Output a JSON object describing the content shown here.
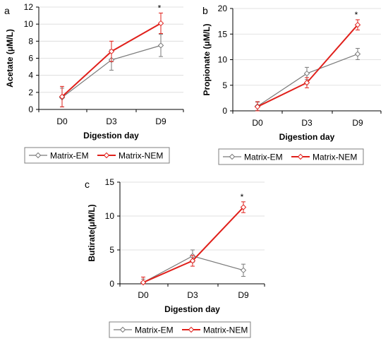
{
  "colors": {
    "em": "#7a7a7a",
    "nem": "#e0201b"
  },
  "chart_data": [
    {
      "type": "line",
      "panel_label": "a",
      "categories": [
        "D0",
        "D3",
        "D9"
      ],
      "xlabel": "Digestion day",
      "ylabel": "Acetate (μM/L)",
      "ylim": [
        0,
        12
      ],
      "yticks": [
        0,
        2,
        4,
        6,
        8,
        10,
        12
      ],
      "significance": [
        {
          "category": "D9",
          "text": "*"
        }
      ],
      "series": [
        {
          "name": "Matrix-EM",
          "values": [
            1.4,
            5.8,
            7.5
          ],
          "errors": [
            1.1,
            1.2,
            1.3
          ]
        },
        {
          "name": "Matrix-NEM",
          "values": [
            1.5,
            6.8,
            10.1
          ],
          "errors": [
            1.2,
            1.2,
            1.2
          ]
        }
      ]
    },
    {
      "type": "line",
      "panel_label": "b",
      "categories": [
        "D0",
        "D3",
        "D9"
      ],
      "xlabel": "Digestion day",
      "ylabel": "Propionate (μM/L)",
      "ylim": [
        0,
        20
      ],
      "yticks": [
        0,
        5,
        10,
        15,
        20
      ],
      "significance": [
        {
          "category": "D9",
          "text": "*"
        }
      ],
      "series": [
        {
          "name": "Matrix-EM",
          "values": [
            0.9,
            7.3,
            11.1
          ],
          "errors": [
            0.8,
            1.2,
            1.1
          ]
        },
        {
          "name": "Matrix-NEM",
          "values": [
            0.8,
            5.5,
            16.8
          ],
          "errors": [
            1.0,
            1.0,
            1.0
          ]
        }
      ]
    },
    {
      "type": "line",
      "panel_label": "c",
      "categories": [
        "D0",
        "D3",
        "D9"
      ],
      "xlabel": "Digestion day",
      "ylabel": "Butirate(μM/L)",
      "ylim": [
        0,
        15
      ],
      "yticks": [
        0,
        5,
        10,
        15
      ],
      "significance": [
        {
          "category": "D9",
          "text": "*"
        }
      ],
      "series": [
        {
          "name": "Matrix-EM",
          "values": [
            0.2,
            4.1,
            2.0
          ],
          "errors": [
            0.5,
            0.9,
            0.9
          ]
        },
        {
          "name": "Matrix-NEM",
          "values": [
            0.2,
            3.4,
            11.3
          ],
          "errors": [
            0.8,
            0.8,
            0.8
          ]
        }
      ]
    }
  ]
}
